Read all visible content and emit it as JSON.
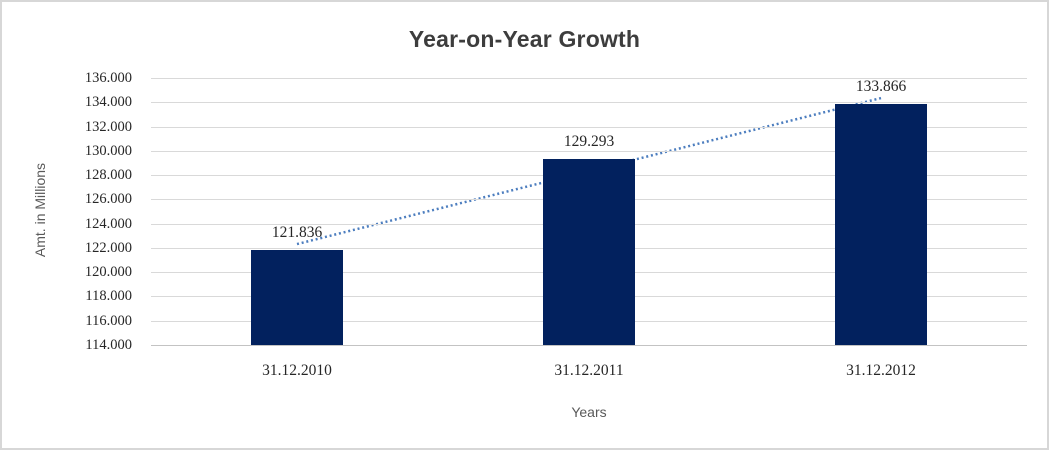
{
  "chart_data": {
    "type": "bar",
    "title": "Year-on-Year Growth",
    "xlabel": "Years",
    "ylabel": "Amt. in Millions",
    "categories": [
      "31.12.2010",
      "31.12.2011",
      "31.12.2012"
    ],
    "values": [
      121.836,
      129.293,
      133.866
    ],
    "data_labels": [
      "121.836",
      "129.293",
      "133.866"
    ],
    "ylim": [
      114,
      136
    ],
    "ytick_step": 2,
    "yticks": [
      "136.000",
      "134.000",
      "132.000",
      "130.000",
      "128.000",
      "126.000",
      "124.000",
      "122.000",
      "120.000",
      "118.000",
      "116.000",
      "114.000"
    ],
    "grid": true,
    "legend": false,
    "colors": {
      "bar": "#02215e",
      "trendline": "#4d7ebf",
      "gridline": "#d9d9d9",
      "axis_line": "#c3c3c3",
      "title_text": "#3d3d3d",
      "axis_title_text": "#595959",
      "tick_text": "#262626"
    },
    "trendline": {
      "type": "linear",
      "style": "dotted"
    }
  }
}
